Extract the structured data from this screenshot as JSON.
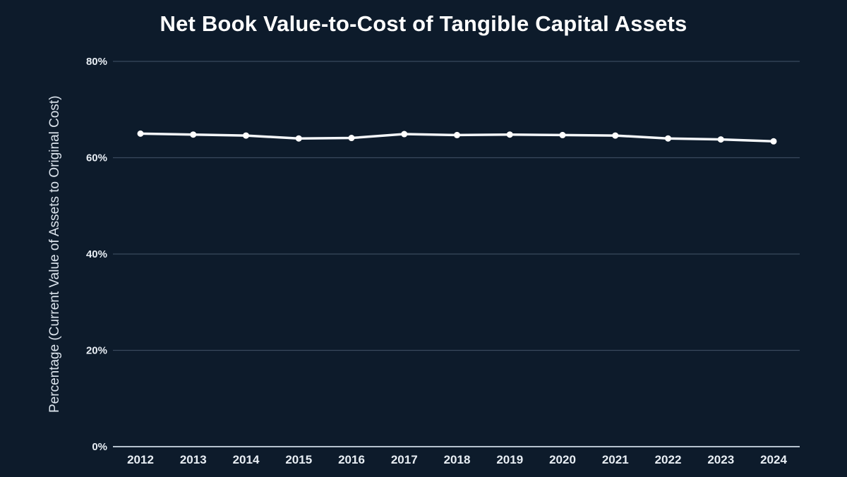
{
  "chart_data": {
    "type": "line",
    "title": "Net Book Value-to-Cost of Tangible Capital Assets",
    "ylabel": "Percentage (Current Value of Assets to Original Cost)",
    "xlabel": "",
    "categories": [
      "2012",
      "2013",
      "2014",
      "2015",
      "2016",
      "2017",
      "2018",
      "2019",
      "2020",
      "2021",
      "2022",
      "2023",
      "2024"
    ],
    "values": [
      65.0,
      64.8,
      64.6,
      64.0,
      64.1,
      64.9,
      64.7,
      64.8,
      64.7,
      64.6,
      64.0,
      63.8,
      63.4
    ],
    "ylim": [
      0,
      80
    ],
    "yticks": [
      0,
      20,
      40,
      60,
      80
    ],
    "ytick_suffix": "%",
    "grid": true,
    "legend": false,
    "colors": {
      "background": "#0d1b2b",
      "title": "#ffffff",
      "axis_label": "#dce4ed",
      "tick_label": "#e8eef4",
      "gridline": "#3a4a5e",
      "axis_line": "#b6c2ce",
      "line": "#f4f7fa",
      "point": "#ffffff"
    }
  }
}
